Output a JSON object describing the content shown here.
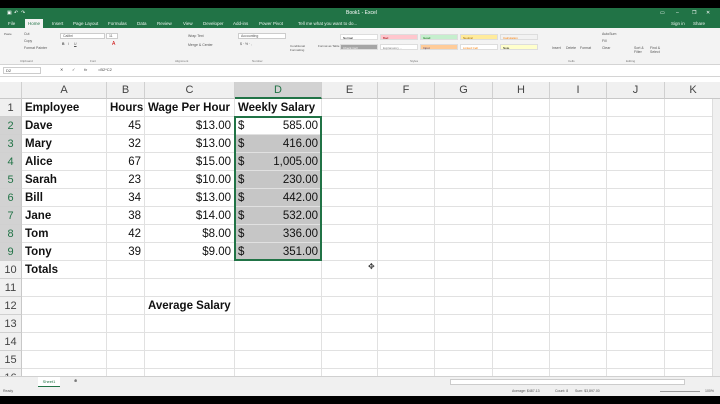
{
  "title": "Book1 - Excel",
  "quick_access": [
    "save-icon",
    "undo-icon",
    "redo-icon"
  ],
  "window_controls": [
    "ribbon-options-icon",
    "minimize-icon",
    "restore-icon",
    "close-icon"
  ],
  "account": {
    "sign_in": "Sign in",
    "share": "Share"
  },
  "tabs": [
    "File",
    "Home",
    "Insert",
    "Page Layout",
    "Formulas",
    "Data",
    "Review",
    "View",
    "Developer",
    "Add-ins",
    "Power Pivot"
  ],
  "active_tab": "Home",
  "tell_me": "Tell me what you want to do...",
  "ribbon": {
    "clipboard": {
      "paste": "Paste",
      "cut": "Cut",
      "copy": "Copy",
      "format_painter": "Format Painter",
      "label": "Clipboard"
    },
    "font": {
      "name": "Calibri",
      "size": "11",
      "label": "Font"
    },
    "alignment": {
      "wrap": "Wrap Text",
      "merge": "Merge & Center",
      "label": "Alignment"
    },
    "number": {
      "format": "Accounting",
      "label": "Number"
    },
    "styles": {
      "conditional": "Conditional Formatting",
      "format_table": "Format as Table",
      "items": [
        {
          "name": "Normal",
          "bg": "#ffffff",
          "fg": "#000000"
        },
        {
          "name": "Bad",
          "bg": "#ffc7ce",
          "fg": "#9c0006"
        },
        {
          "name": "Good",
          "bg": "#c6efce",
          "fg": "#006100"
        },
        {
          "name": "Neutral",
          "bg": "#ffeb9c",
          "fg": "#9c6500"
        },
        {
          "name": "Calculation",
          "bg": "#f2f2f2",
          "fg": "#fa7d00"
        },
        {
          "name": "Check Cell",
          "bg": "#a5a5a5",
          "fg": "#ffffff"
        },
        {
          "name": "Explanatory ...",
          "bg": "#ffffff",
          "fg": "#7f7f7f"
        },
        {
          "name": "Input",
          "bg": "#ffcc99",
          "fg": "#3f3f76"
        },
        {
          "name": "Linked Cell",
          "bg": "#ffffff",
          "fg": "#fa7d00"
        },
        {
          "name": "Note",
          "bg": "#ffffcc",
          "fg": "#000000"
        }
      ],
      "label": "Styles"
    },
    "cells": {
      "insert": "Insert",
      "delete": "Delete",
      "format": "Format",
      "label": "Cells"
    },
    "editing": {
      "autosum": "AutoSum",
      "fill": "Fill",
      "clear": "Clear",
      "sort": "Sort & Filter",
      "find": "Find & Select",
      "label": "Editing"
    }
  },
  "name_box": "D2",
  "formula": "=B2*C2",
  "columns": [
    "A",
    "B",
    "C",
    "D",
    "E",
    "F",
    "G",
    "H",
    "I",
    "J",
    "K"
  ],
  "rows": [
    "1",
    "2",
    "3",
    "4",
    "5",
    "6",
    "7",
    "8",
    "9",
    "10",
    "11",
    "12",
    "13",
    "14",
    "15",
    "16"
  ],
  "table": {
    "headers": [
      "Employee",
      "Hours",
      "Wage Per Hour",
      "Weekly Salary"
    ],
    "currency": "$",
    "data": [
      [
        "Dave",
        "45",
        "$13.00",
        "585.00"
      ],
      [
        "Mary",
        "32",
        "$13.00",
        "416.00"
      ],
      [
        "Alice",
        "67",
        "$15.00",
        "1,005.00"
      ],
      [
        "Sarah",
        "23",
        "$10.00",
        "230.00"
      ],
      [
        "Bill",
        "34",
        "$13.00",
        "442.00"
      ],
      [
        "Jane",
        "38",
        "$14.00",
        "532.00"
      ],
      [
        "Tom",
        "42",
        "$8.00",
        "336.00"
      ],
      [
        "Tony",
        "39",
        "$9.00",
        "351.00"
      ]
    ],
    "totals_label": "Totals",
    "average_label": "Average  Salary"
  },
  "sheets": [
    "Sheet1"
  ],
  "status": {
    "mode": "Ready",
    "average": "Average: $487.13",
    "count": "Count: 8",
    "sum": "Sum: $3,897.00",
    "zoom": "100%"
  },
  "accent": "#217346"
}
